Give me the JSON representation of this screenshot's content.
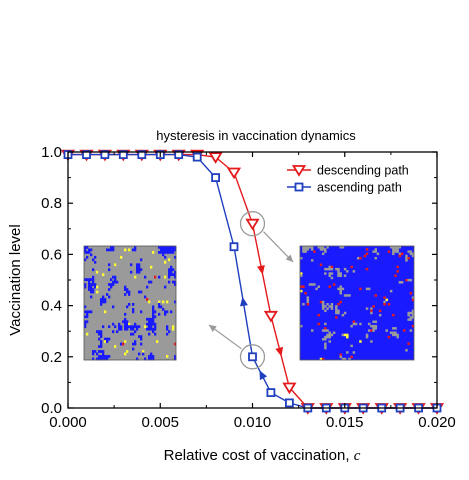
{
  "chart_data": {
    "type": "line",
    "title": "hysteresis in vaccination dynamics",
    "xlabel": "Relative cost of vaccination, ",
    "xlabel_var": "c",
    "ylabel": "Vaccination level",
    "xlim": [
      0,
      0.02
    ],
    "ylim": [
      0,
      1.0
    ],
    "xticks": [
      "0.000",
      "0.005",
      "0.010",
      "0.015",
      "0.020"
    ],
    "yticks": [
      "0.0",
      "0.2",
      "0.4",
      "0.6",
      "0.8",
      "1.0"
    ],
    "legend_position": "top-right",
    "series": [
      {
        "name": "descending path",
        "color": "#e41a1c",
        "marker": "triangle-down",
        "x": [
          0,
          0.001,
          0.002,
          0.003,
          0.004,
          0.005,
          0.006,
          0.007,
          0.008,
          0.009,
          0.01,
          0.011,
          0.012,
          0.013,
          0.014,
          0.015,
          0.016,
          0.017,
          0.018,
          0.019,
          0.02
        ],
        "values": [
          0.99,
          0.99,
          0.99,
          0.99,
          0.99,
          0.99,
          0.99,
          0.99,
          0.98,
          0.92,
          0.72,
          0.36,
          0.08,
          0.0,
          0.0,
          0.0,
          0.0,
          0.0,
          0.0,
          0.0,
          0.0
        ]
      },
      {
        "name": "ascending path",
        "color": "#1f3fbf",
        "marker": "square",
        "x": [
          0,
          0.001,
          0.002,
          0.003,
          0.004,
          0.005,
          0.006,
          0.007,
          0.008,
          0.009,
          0.01,
          0.011,
          0.012,
          0.013,
          0.014,
          0.015,
          0.016,
          0.017,
          0.018,
          0.019,
          0.02
        ],
        "values": [
          0.99,
          0.99,
          0.99,
          0.99,
          0.99,
          0.99,
          0.99,
          0.98,
          0.9,
          0.63,
          0.2,
          0.06,
          0.02,
          0.0,
          0.0,
          0.0,
          0.0,
          0.0,
          0.0,
          0.0,
          0.0
        ]
      }
    ],
    "insets": [
      {
        "name": "snapshot-ascending",
        "base_color": "#9a9a9a",
        "colors": [
          "#1a1aff",
          "#e41a1c",
          "#ffff33"
        ],
        "highlight_point": {
          "x": 0.01,
          "y": 0.2
        }
      },
      {
        "name": "snapshot-descending",
        "base_color": "#1a1aff",
        "colors": [
          "#9a9a9a",
          "#ffff33",
          "#e41a1c"
        ],
        "highlight_point": {
          "x": 0.01,
          "y": 0.72
        }
      }
    ]
  }
}
